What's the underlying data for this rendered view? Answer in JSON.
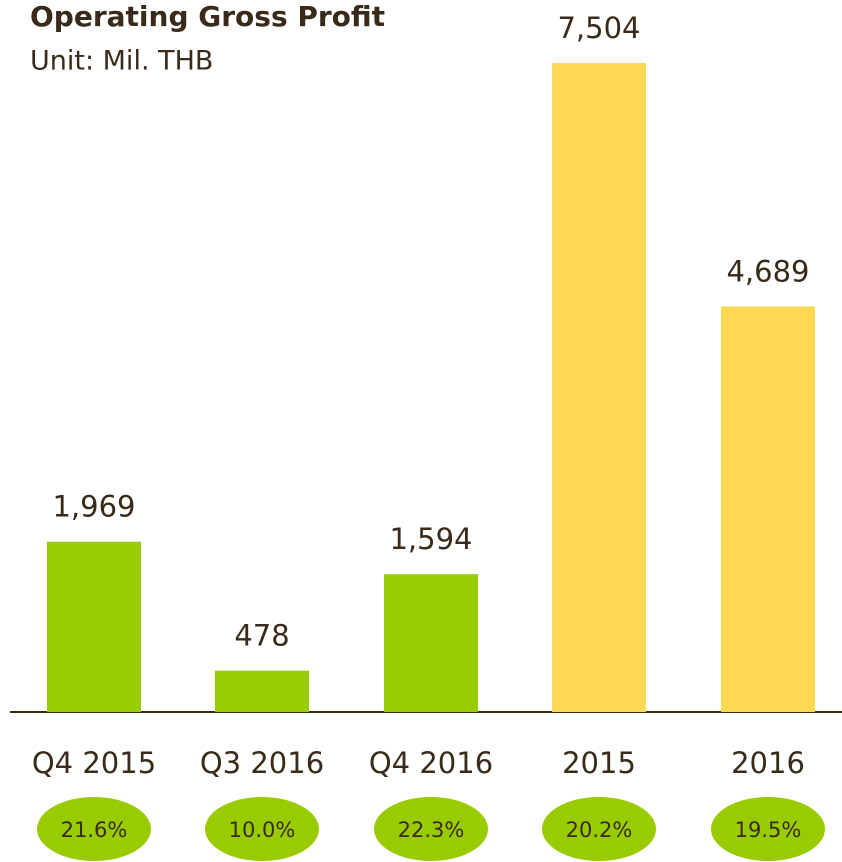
{
  "chart_data": {
    "type": "bar",
    "title": "Operating Gross Profit",
    "subtitle": "Unit: Mil. THB",
    "categories": [
      "Q4 2015",
      "Q3 2016",
      "Q4 2016",
      "2015",
      "2016"
    ],
    "values": [
      1969,
      478,
      1594,
      7504,
      4689
    ],
    "value_labels": [
      "1,969",
      "478",
      "1,594",
      "7,504",
      "4,689"
    ],
    "colors": [
      "#99cc00",
      "#99cc00",
      "#99cc00",
      "#ffd953",
      "#ffd953"
    ],
    "margins": [
      21.6,
      10.0,
      22.3,
      20.2,
      19.5
    ],
    "margin_labels": [
      "21.6%",
      "10.0%",
      "22.3%",
      "20.2%",
      "19.5%"
    ],
    "margin_color": "#99cc00"
  }
}
